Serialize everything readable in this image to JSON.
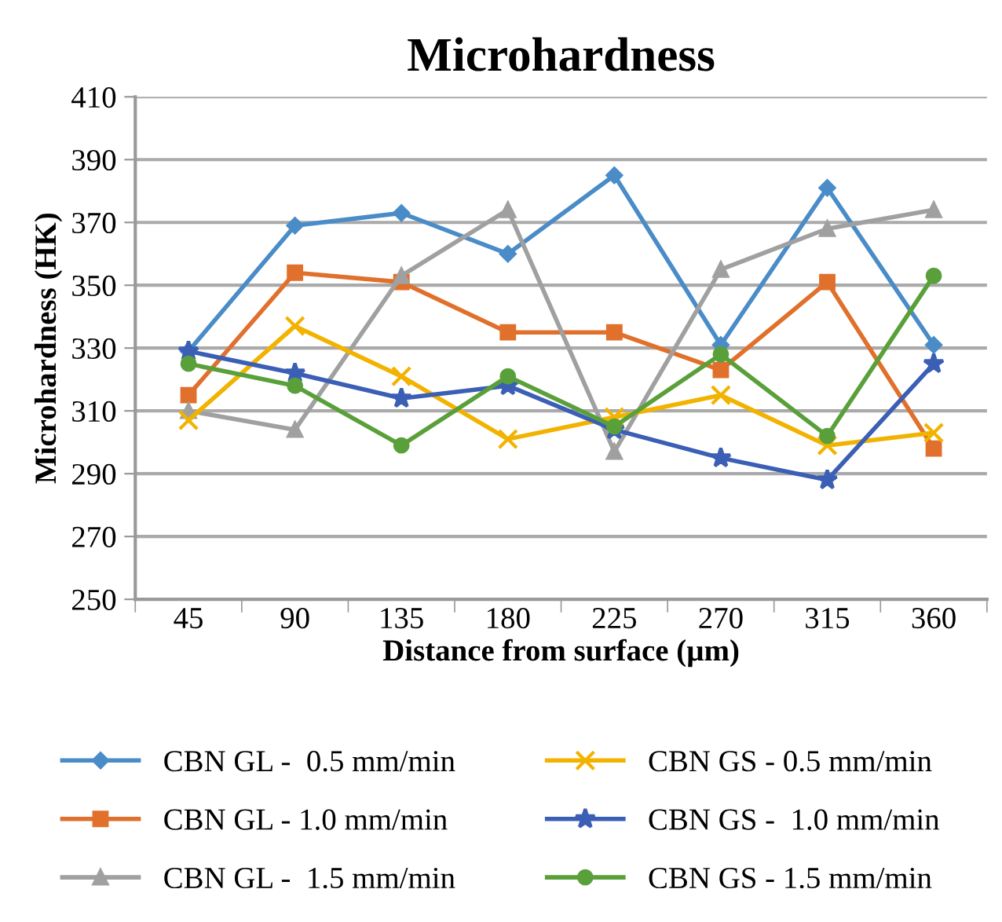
{
  "chart_data": {
    "type": "line",
    "title": "Microhardness",
    "xlabel": "Distance from surface (µm)",
    "ylabel": "Microhardness (HK)",
    "categories": [
      "45",
      "90",
      "135",
      "180",
      "225",
      "270",
      "315",
      "360"
    ],
    "ylim": [
      250,
      410
    ],
    "yticks": [
      250,
      270,
      290,
      310,
      330,
      350,
      370,
      390,
      410
    ],
    "grid": "y",
    "legend": "bottom",
    "series": [
      {
        "name": "CBN GL -  0.5 mm/min",
        "color": "#4a8cc7",
        "marker": "diamond",
        "values": [
          329,
          369,
          373,
          360,
          385,
          331,
          381,
          331
        ]
      },
      {
        "name": "CBN GL - 1.0 mm/min",
        "color": "#e0702b",
        "marker": "square",
        "values": [
          315,
          354,
          351,
          335,
          335,
          323,
          351,
          298
        ]
      },
      {
        "name": "CBN GL -  1.5 mm/min",
        "color": "#a0a0a0",
        "marker": "triangle",
        "values": [
          310,
          304,
          353,
          374,
          297,
          355,
          368,
          374
        ]
      },
      {
        "name": "CBN GS - 0.5 mm/min",
        "color": "#f2b300",
        "marker": "cross",
        "values": [
          307,
          337,
          321,
          301,
          308,
          315,
          299,
          303
        ]
      },
      {
        "name": "CBN GS -  1.0 mm/min",
        "color": "#3b5fb5",
        "marker": "star",
        "values": [
          329,
          322,
          314,
          318,
          304,
          295,
          288,
          325
        ]
      },
      {
        "name": "CBN GS - 1.5 mm/min",
        "color": "#5aa03a",
        "marker": "circle",
        "values": [
          325,
          318,
          299,
          321,
          305,
          328,
          302,
          353
        ]
      }
    ]
  }
}
